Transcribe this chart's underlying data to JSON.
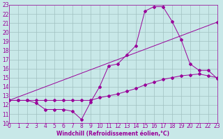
{
  "xlabel": "Windchill (Refroidissement éolien,°C)",
  "bg_color": "#c8e8e8",
  "grid_color": "#a0c0c0",
  "line_color": "#990099",
  "xlim": [
    0,
    23
  ],
  "ylim": [
    10,
    23
  ],
  "xticks": [
    0,
    1,
    2,
    3,
    4,
    5,
    6,
    7,
    8,
    9,
    10,
    11,
    12,
    13,
    14,
    15,
    16,
    17,
    18,
    19,
    20,
    21,
    22,
    23
  ],
  "yticks": [
    10,
    11,
    12,
    13,
    14,
    15,
    16,
    17,
    18,
    19,
    20,
    21,
    22,
    23
  ],
  "line1_x": [
    0,
    1,
    2,
    3,
    4,
    5,
    6,
    7,
    8,
    9,
    10,
    11,
    12,
    13,
    14,
    15,
    16,
    17,
    18,
    19,
    20,
    21,
    22,
    23
  ],
  "line1_y": [
    12.5,
    12.5,
    12.5,
    12.5,
    12.5,
    12.5,
    12.5,
    12.5,
    12.5,
    12.5,
    12.8,
    13.0,
    13.2,
    13.5,
    13.8,
    14.2,
    14.5,
    14.8,
    15.0,
    15.2,
    15.3,
    15.4,
    15.2,
    15.0
  ],
  "line2_x": [
    0,
    1,
    2,
    3,
    4,
    5,
    6,
    7,
    8,
    9,
    10,
    11,
    12,
    13,
    14,
    15,
    16,
    17,
    18,
    19,
    20,
    21,
    22,
    23
  ],
  "line2_y": [
    12.5,
    12.5,
    12.5,
    12.2,
    11.5,
    11.5,
    11.5,
    11.3,
    10.4,
    12.3,
    14.0,
    16.3,
    16.5,
    17.5,
    18.5,
    22.3,
    22.8,
    22.8,
    21.2,
    19.2,
    16.5,
    15.8,
    15.8,
    14.9
  ],
  "line3_x": [
    0,
    23
  ],
  "line3_y": [
    12.5,
    21.1
  ],
  "marker": "D",
  "marker_size": 2.0,
  "tick_fontsize": 5.5,
  "xlabel_fontsize": 5.5
}
